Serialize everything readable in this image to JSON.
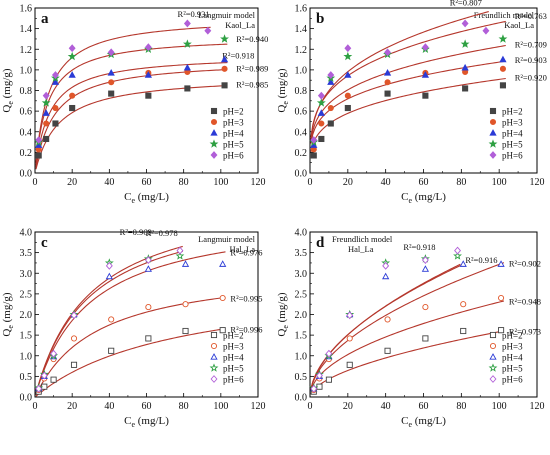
{
  "figure": {
    "colors": {
      "curve": "#b5372c",
      "pH=2": "#444444",
      "pH=3": "#e0562a",
      "pH=4": "#2b3bd6",
      "pH=5": "#2ea043",
      "pH=6": "#b15fd8"
    }
  },
  "chart_data": [
    {
      "panel_label": "a",
      "type": "scatter",
      "model_label": "Langmuir model",
      "sample_label": "Kaol_La",
      "xlabel_main": "C",
      "xlabel_sub": "e",
      "xlabel_rest": " (mg/L)",
      "ylabel_main": "Q",
      "ylabel_sub": "e",
      "ylabel_rest": " (mg/g)",
      "xlim": [
        0,
        120
      ],
      "ylim": [
        0.0,
        1.6
      ],
      "xticks": [
        0,
        20,
        40,
        60,
        80,
        100,
        120
      ],
      "yticks": [
        0.0,
        0.2,
        0.4,
        0.6,
        0.8,
        1.0,
        1.2,
        1.4,
        1.6
      ],
      "tick_decimals": 1,
      "legend_position": "bottom-right",
      "marker_fill": "filled",
      "model": "langmuir",
      "series": [
        {
          "name": "pH=2",
          "marker": "square",
          "x": [
            2,
            6,
            11,
            20,
            41,
            61,
            82,
            102
          ],
          "y": [
            0.17,
            0.33,
            0.48,
            0.63,
            0.77,
            0.75,
            0.82,
            0.85
          ],
          "params": [
            0.95,
            0.08
          ],
          "r2": "R²=0.985"
        },
        {
          "name": "pH=3",
          "marker": "circle",
          "x": [
            2,
            6,
            11,
            20,
            41,
            61,
            82,
            102
          ],
          "y": [
            0.23,
            0.48,
            0.63,
            0.75,
            0.88,
            0.97,
            0.98,
            1.01
          ],
          "params": [
            1.1,
            0.1
          ],
          "r2": "R²=0.989"
        },
        {
          "name": "pH=4",
          "marker": "triangle",
          "x": [
            2,
            6,
            11,
            20,
            41,
            61,
            82,
            102
          ],
          "y": [
            0.27,
            0.58,
            0.88,
            0.95,
            0.97,
            0.95,
            1.02,
            1.1
          ],
          "params": [
            1.15,
            0.13
          ],
          "r2": "R²=0.918"
        },
        {
          "name": "pH=5",
          "marker": "star",
          "x": [
            2,
            6,
            11,
            20,
            41,
            61,
            82,
            102
          ],
          "y": [
            0.3,
            0.68,
            0.92,
            1.13,
            1.15,
            1.2,
            1.25,
            1.3
          ],
          "params": [
            1.33,
            0.15
          ],
          "r2": "R²=0.940"
        },
        {
          "name": "pH=6",
          "marker": "diamond",
          "x": [
            2,
            6,
            11,
            20,
            41,
            61,
            82,
            93
          ],
          "y": [
            0.32,
            0.75,
            0.95,
            1.21,
            1.17,
            1.22,
            1.45,
            1.38
          ],
          "params": [
            1.52,
            0.14
          ],
          "r2": "R²=0.931"
        }
      ]
    },
    {
      "panel_label": "b",
      "type": "scatter",
      "model_label": "Freundlich model",
      "sample_label": "Kaol_La",
      "xlabel_main": "C",
      "xlabel_sub": "e",
      "xlabel_rest": " (mg/L)",
      "ylabel_main": "Q",
      "ylabel_sub": "e",
      "ylabel_rest": " (mg/g)",
      "xlim": [
        0,
        120
      ],
      "ylim": [
        0.0,
        1.6
      ],
      "xticks": [
        0,
        20,
        40,
        60,
        80,
        100,
        120
      ],
      "yticks": [
        0.0,
        0.2,
        0.4,
        0.6,
        0.8,
        1.0,
        1.2,
        1.4,
        1.6
      ],
      "tick_decimals": 1,
      "legend_position": "bottom-right",
      "marker_fill": "filled",
      "model": "freundlich",
      "series": [
        {
          "name": "pH=2",
          "marker": "square",
          "x": [
            2,
            6,
            11,
            20,
            41,
            61,
            82,
            102
          ],
          "y": [
            0.17,
            0.33,
            0.48,
            0.63,
            0.77,
            0.75,
            0.82,
            0.85
          ],
          "params": [
            0.25,
            0.28
          ],
          "r2": "R²=0.920"
        },
        {
          "name": "pH=3",
          "marker": "circle",
          "x": [
            2,
            6,
            11,
            20,
            41,
            61,
            82,
            102
          ],
          "y": [
            0.23,
            0.48,
            0.63,
            0.75,
            0.88,
            0.97,
            0.98,
            1.01
          ],
          "params": [
            0.34,
            0.25
          ],
          "r2": "R²=0.903"
        },
        {
          "name": "pH=4",
          "marker": "triangle",
          "x": [
            2,
            6,
            11,
            20,
            41,
            61,
            82,
            102
          ],
          "y": [
            0.27,
            0.58,
            0.88,
            0.95,
            0.97,
            0.95,
            1.02,
            1.1
          ],
          "params": [
            0.37,
            0.26
          ],
          "r2": "R²=0.709"
        },
        {
          "name": "pH=5",
          "marker": "star",
          "x": [
            2,
            6,
            11,
            20,
            41,
            61,
            82,
            102
          ],
          "y": [
            0.3,
            0.68,
            0.92,
            1.13,
            1.15,
            1.2,
            1.25,
            1.3
          ],
          "params": [
            0.42,
            0.27
          ],
          "r2": "R²=0.763"
        },
        {
          "name": "pH=6",
          "marker": "diamond",
          "x": [
            2,
            6,
            11,
            20,
            41,
            61,
            82,
            93
          ],
          "y": [
            0.32,
            0.75,
            0.95,
            1.21,
            1.17,
            1.22,
            1.45,
            1.38
          ],
          "params": [
            0.4,
            0.3
          ],
          "r2": "R²=0.807"
        }
      ]
    },
    {
      "panel_label": "c",
      "type": "scatter",
      "model_label": "Langmuir model",
      "sample_label": "Hal_La",
      "xlabel_main": "C",
      "xlabel_sub": "e",
      "xlabel_rest": " (mg/L)",
      "ylabel_main": "Q",
      "ylabel_sub": "e",
      "ylabel_rest": " (mg/g)",
      "xlim": [
        0,
        120
      ],
      "ylim": [
        0.0,
        4.0
      ],
      "xticks": [
        0,
        20,
        40,
        60,
        80,
        100,
        120
      ],
      "yticks": [
        0.0,
        0.5,
        1.0,
        1.5,
        2.0,
        2.5,
        3.0,
        3.5,
        4.0
      ],
      "tick_decimals": 1,
      "legend_position": "bottom-right",
      "marker_fill": "open",
      "model": "langmuir",
      "series": [
        {
          "name": "pH=2",
          "marker": "square",
          "x": [
            2,
            5,
            10,
            21,
            41,
            61,
            81,
            101
          ],
          "y": [
            0.13,
            0.25,
            0.42,
            0.78,
            1.12,
            1.42,
            1.6,
            1.62
          ],
          "params": [
            2.9,
            0.013
          ],
          "r2": "R²=0.996"
        },
        {
          "name": "pH=3",
          "marker": "circle",
          "x": [
            2,
            5,
            10,
            21,
            41,
            61,
            81,
            101
          ],
          "y": [
            0.17,
            0.45,
            0.92,
            1.42,
            1.88,
            2.18,
            2.25,
            2.4
          ],
          "params": [
            3.2,
            0.03
          ],
          "r2": "R²=0.995"
        },
        {
          "name": "pH=4",
          "marker": "triangle",
          "x": [
            2,
            5,
            10,
            21,
            40,
            61,
            81,
            101
          ],
          "y": [
            0.2,
            0.5,
            0.98,
            2.0,
            2.92,
            3.1,
            3.22,
            3.22
          ],
          "params": [
            4.5,
            0.035
          ],
          "r2": "R²=0.976"
        },
        {
          "name": "pH=5",
          "marker": "star",
          "x": [
            2,
            5,
            10,
            21,
            40,
            61,
            78
          ],
          "y": [
            0.22,
            0.55,
            1.0,
            2.0,
            3.25,
            3.35,
            3.42
          ],
          "params": [
            5.0,
            0.034
          ],
          "r2": "R²=0.978"
        },
        {
          "name": "pH=6",
          "marker": "diamond",
          "x": [
            2,
            5,
            10,
            21,
            40,
            61,
            78
          ],
          "y": [
            0.2,
            0.52,
            1.05,
            1.98,
            3.18,
            3.32,
            3.55
          ],
          "params": [
            4.8,
            0.035
          ],
          "r2": "R²=0.969"
        }
      ]
    },
    {
      "panel_label": "d",
      "type": "scatter",
      "model_label": "Freundlich model",
      "sample_label": "Hal_La",
      "xlabel_main": "C",
      "xlabel_sub": "e",
      "xlabel_rest": " (mg/L)",
      "ylabel_main": "Q",
      "ylabel_sub": "e",
      "ylabel_rest": " (mg/g)",
      "xlim": [
        0,
        120
      ],
      "ylim": [
        0.0,
        4.0
      ],
      "xticks": [
        0,
        20,
        40,
        60,
        80,
        100,
        120
      ],
      "yticks": [
        0.0,
        0.5,
        1.0,
        1.5,
        2.0,
        2.5,
        3.0,
        3.5,
        4.0
      ],
      "tick_decimals": 1,
      "legend_position": "bottom-right",
      "marker_fill": "open",
      "model": "freundlich",
      "series": [
        {
          "name": "pH=2",
          "marker": "square",
          "x": [
            2,
            5,
            10,
            21,
            41,
            61,
            81,
            101
          ],
          "y": [
            0.13,
            0.25,
            0.42,
            0.78,
            1.12,
            1.42,
            1.6,
            1.62
          ],
          "params": [
            0.12,
            0.56
          ],
          "r2": "R²=0.973"
        },
        {
          "name": "pH=3",
          "marker": "circle",
          "x": [
            2,
            5,
            10,
            21,
            41,
            61,
            81,
            101
          ],
          "y": [
            0.17,
            0.45,
            0.92,
            1.42,
            1.88,
            2.18,
            2.25,
            2.4
          ],
          "params": [
            0.23,
            0.5
          ],
          "r2": "R²=0.948"
        },
        {
          "name": "pH=4",
          "marker": "triangle",
          "x": [
            2,
            5,
            10,
            21,
            40,
            61,
            81,
            101
          ],
          "y": [
            0.2,
            0.5,
            0.98,
            2.0,
            2.92,
            3.1,
            3.22,
            3.22
          ],
          "params": [
            0.28,
            0.53
          ],
          "r2": "R²=0.902"
        },
        {
          "name": "pH=5",
          "marker": "star",
          "x": [
            2,
            5,
            10,
            21,
            40,
            61,
            78
          ],
          "y": [
            0.22,
            0.55,
            1.0,
            2.0,
            3.25,
            3.35,
            3.42
          ],
          "params": [
            0.3,
            0.54
          ],
          "r2": "R²=0.916"
        },
        {
          "name": "pH=6",
          "marker": "diamond",
          "x": [
            2,
            5,
            10,
            21,
            40,
            61,
            78
          ],
          "y": [
            0.2,
            0.52,
            1.05,
            1.98,
            3.18,
            3.32,
            3.55
          ],
          "params": [
            0.29,
            0.55
          ],
          "r2": "R²=0.918"
        }
      ]
    }
  ]
}
